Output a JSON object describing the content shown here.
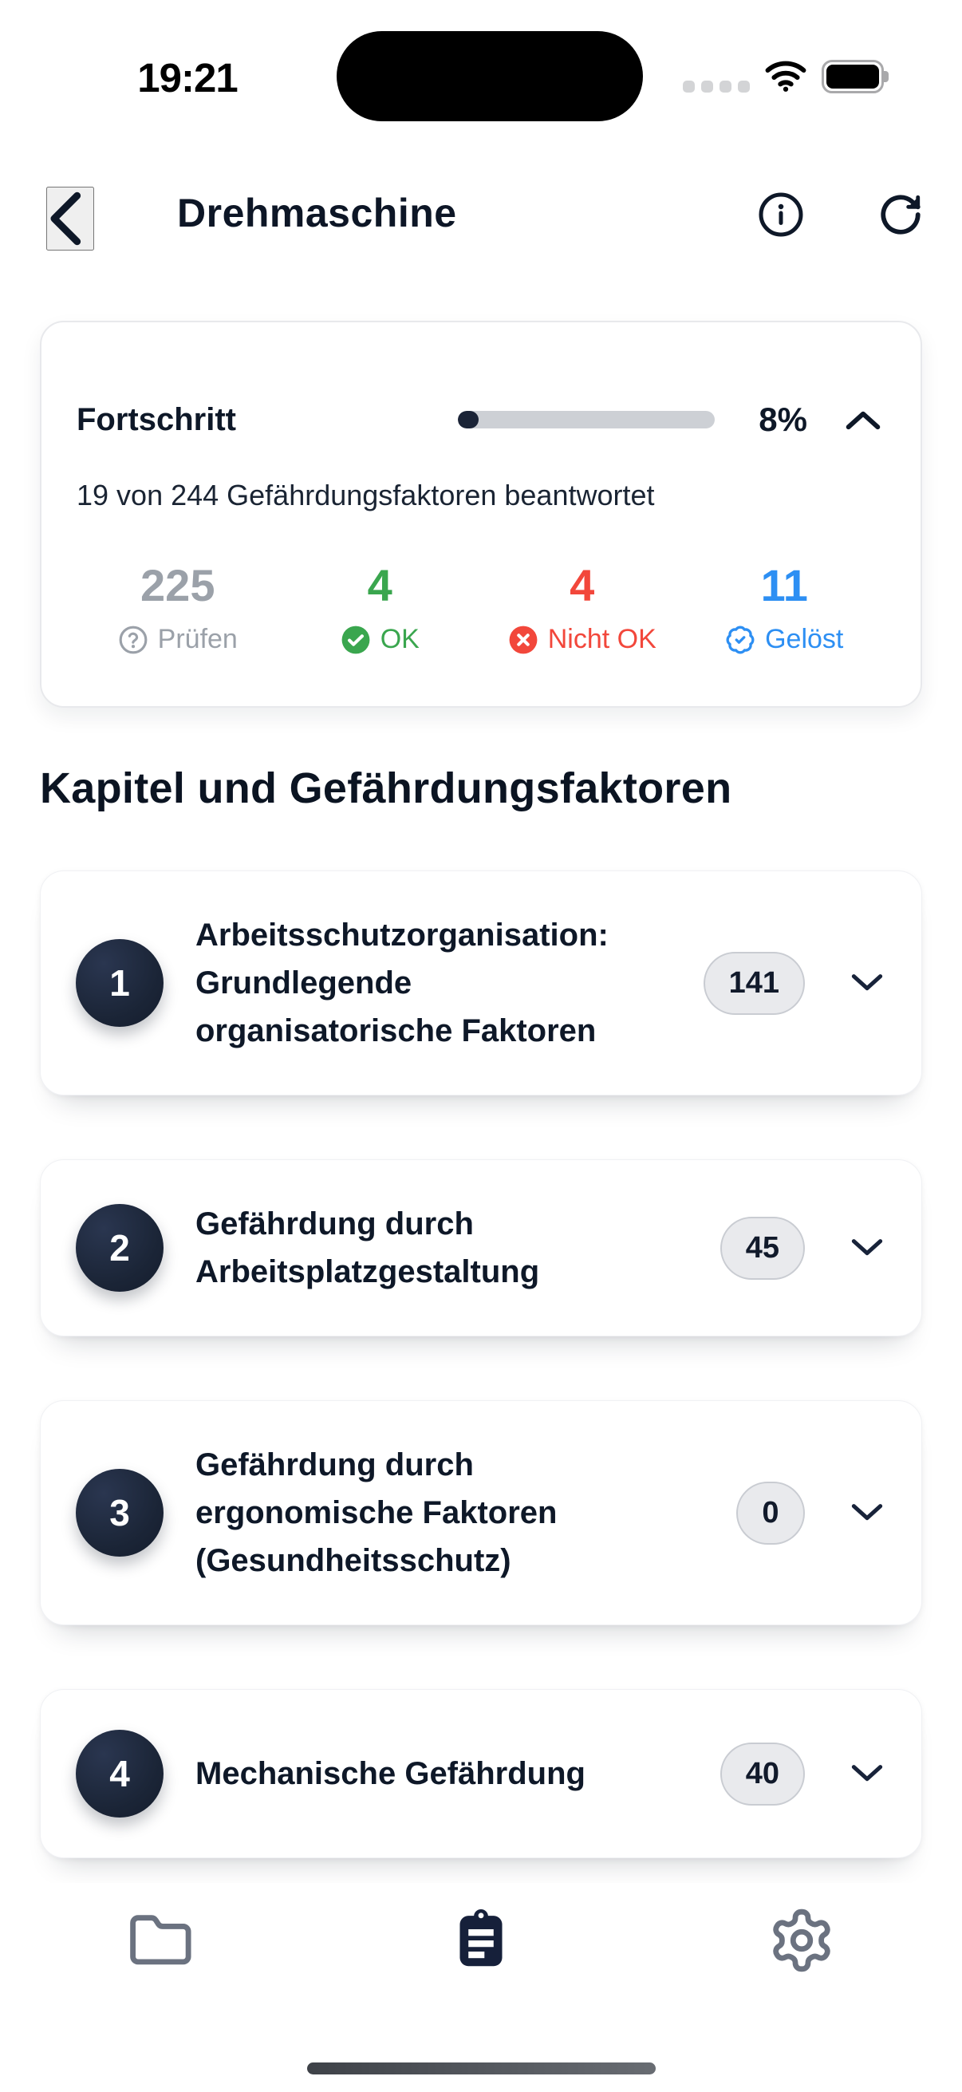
{
  "status_bar": {
    "time": "19:21"
  },
  "header": {
    "title": "Drehmaschine"
  },
  "progress_card": {
    "title": "Fortschritt",
    "percent": 8,
    "percent_label": "8%",
    "subtitle": "19 von 244 Gefährdungsfaktoren beantwortet",
    "stats": [
      {
        "value": "225",
        "label": "Prüfen",
        "icon": "question-circle-icon",
        "color": "#9BA1A9"
      },
      {
        "value": "4",
        "label": "OK",
        "icon": "check-circle-icon",
        "color": "#3AA64E"
      },
      {
        "value": "4",
        "label": "Nicht OK",
        "icon": "x-circle-icon",
        "color": "#F2473B"
      },
      {
        "value": "11",
        "label": "Gelöst",
        "icon": "badge-check-icon",
        "color": "#2D8FF3"
      }
    ]
  },
  "section_title": "Kapitel und Gefährdungsfaktoren",
  "chapters": [
    {
      "number": "1",
      "title": "Arbeitsschutzorganisation: Grundlegende organisatorische Faktoren",
      "count": "141"
    },
    {
      "number": "2",
      "title": "Gefährdung durch Arbeitsplatzgestaltung",
      "count": "45"
    },
    {
      "number": "3",
      "title": "Gefährdung durch ergonomische Faktoren (Gesundheitsschutz)",
      "count": "0"
    },
    {
      "number": "4",
      "title": "Mechanische Gefährdung",
      "count": "40"
    }
  ],
  "tab_bar": {
    "tabs": [
      {
        "icon": "folder-icon",
        "active": false
      },
      {
        "icon": "clipboard-icon",
        "active": true
      },
      {
        "icon": "gear-icon",
        "active": false
      }
    ]
  },
  "colors": {
    "text_primary": "#0E1828",
    "accent_circle": "#1B2537",
    "progress_track": "#CDD0D5",
    "badge_background": "#E9EAED",
    "badge_border": "#C9CCD2",
    "inactive_tab": "#6B7280"
  }
}
